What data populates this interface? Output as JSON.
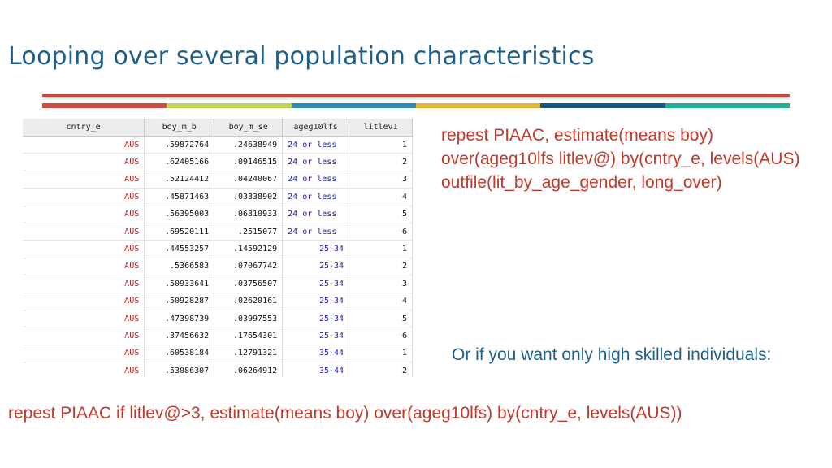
{
  "slide": {
    "title": "Looping over several population characteristics",
    "accent_colors": [
      "#c94b3c",
      "#c3d256",
      "#2a8cb5",
      "#e0b534",
      "#1b5a86",
      "#1fae93"
    ],
    "command1": "repest PIAAC, estimate(means boy) over(ageg10lfs litlev@) by(cntry_e, levels(AUS) outfile(lit_by_age_gender, long_over)",
    "note": "Or if you want only high skilled individuals:",
    "command2": "repest PIAAC if litlev@>3, estimate(means boy) over(ageg10lfs) by(cntry_e, levels(AUS))"
  },
  "table": {
    "columns": [
      "cntry_e",
      "boy_m_b",
      "boy_m_se",
      "ageg10lfs",
      "litlev1"
    ],
    "rows": [
      [
        "AUS",
        ".59872764",
        ".24638949",
        "24 or less",
        "1"
      ],
      [
        "AUS",
        ".62405166",
        ".09146515",
        "24 or less",
        "2"
      ],
      [
        "AUS",
        ".52124412",
        ".04240067",
        "24 or less",
        "3"
      ],
      [
        "AUS",
        ".45871463",
        ".03338902",
        "24 or less",
        "4"
      ],
      [
        "AUS",
        ".56395003",
        ".06310933",
        "24 or less",
        "5"
      ],
      [
        "AUS",
        ".69520111",
        ".2515077",
        "24 or less",
        "6"
      ],
      [
        "AUS",
        ".44553257",
        ".14592129",
        "25-34",
        "1"
      ],
      [
        "AUS",
        ".5366583",
        ".07067742",
        "25-34",
        "2"
      ],
      [
        "AUS",
        ".50933641",
        ".03756507",
        "25-34",
        "3"
      ],
      [
        "AUS",
        ".50928287",
        ".02620161",
        "25-34",
        "4"
      ],
      [
        "AUS",
        ".47398739",
        ".03997553",
        "25-34",
        "5"
      ],
      [
        "AUS",
        ".37456632",
        ".17654301",
        "25-34",
        "6"
      ],
      [
        "AUS",
        ".60538184",
        ".12791321",
        "35-44",
        "1"
      ],
      [
        "AUS",
        ".53086307",
        ".06264912",
        "35-44",
        "2"
      ]
    ]
  }
}
